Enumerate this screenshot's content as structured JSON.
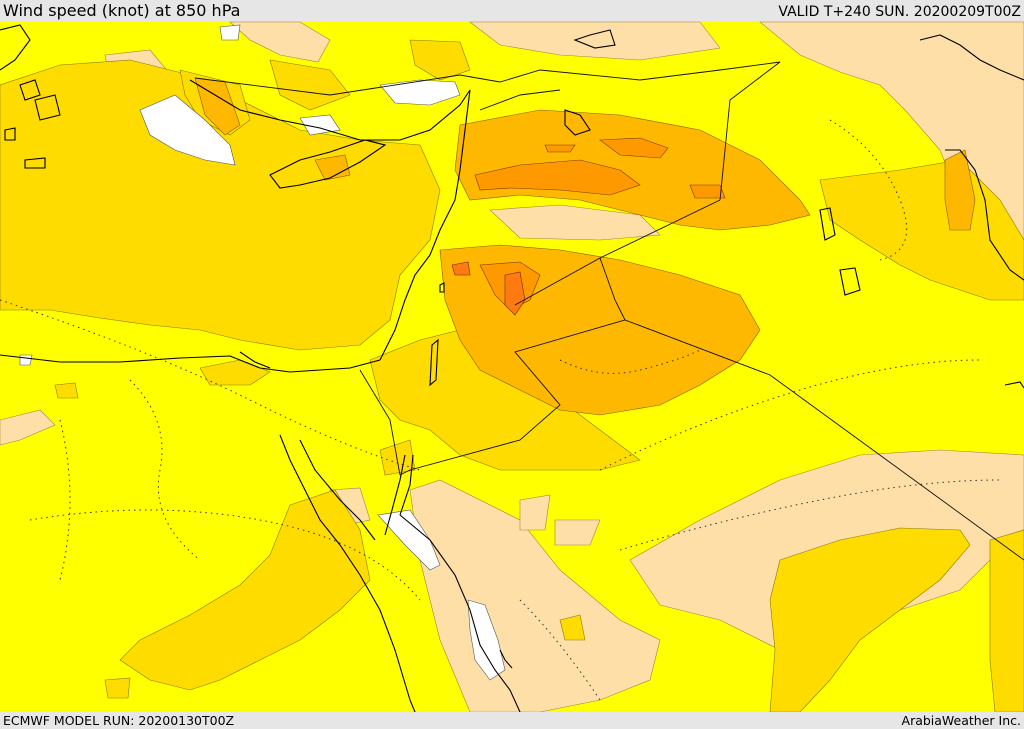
{
  "header": {
    "title": "Wind speed (knot) at 850 hPa",
    "valid_time": "VALID T+240 SUN. 20200209T00Z"
  },
  "footer": {
    "model_run": "ECMWF MODEL RUN: 20200130T00Z",
    "credit": "ArabiaWeather Inc."
  },
  "map": {
    "variable": "wind speed",
    "unit": "knot",
    "level": "850 hPa",
    "colors": {
      "calm": "#ffffff",
      "light": "#ffdfa8",
      "base": "#ffff00",
      "moderate": "#ffdc00",
      "strong": "#ffb800",
      "very_strong": "#ff9900",
      "strongest": "#ff7a10",
      "coastline": "#000000"
    }
  }
}
